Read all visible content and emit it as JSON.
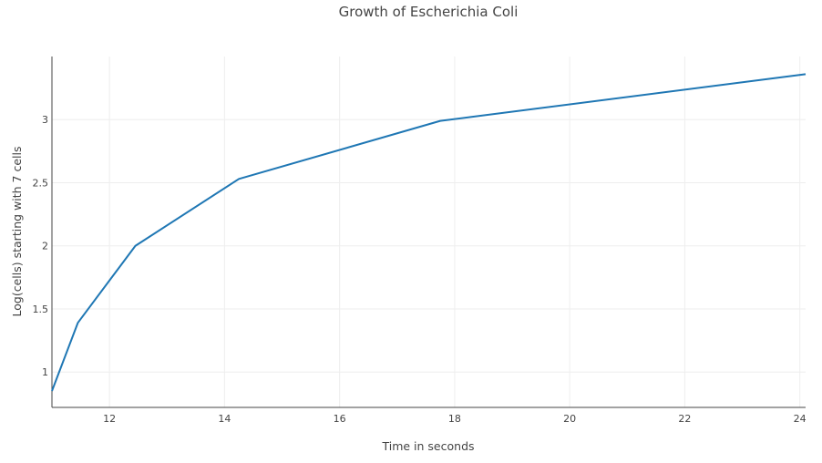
{
  "chart_data": {
    "type": "line",
    "title": "Growth of Escherichia Coli",
    "xlabel": "Time in seconds",
    "ylabel": "Log(cells) starting with 7 cells",
    "xlim": [
      11,
      24.1
    ],
    "ylim": [
      0.72,
      3.5
    ],
    "x_ticks": [
      12,
      14,
      16,
      18,
      20,
      22,
      24
    ],
    "y_ticks": [
      1,
      1.5,
      2,
      2.5,
      3
    ],
    "x_tick_labels": [
      "12",
      "14",
      "16",
      "18",
      "20",
      "22",
      "24"
    ],
    "y_tick_labels": [
      "1",
      "1.5",
      "2",
      "2.5",
      "3"
    ],
    "grid": true,
    "series": [
      {
        "color": "#1f77b4",
        "x": [
          11.0,
          11.45,
          12.45,
          14.25,
          17.75,
          24.1
        ],
        "y": [
          0.85,
          1.39,
          2.0,
          2.53,
          2.99,
          3.36
        ]
      }
    ]
  }
}
